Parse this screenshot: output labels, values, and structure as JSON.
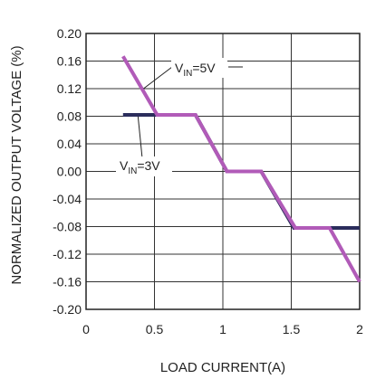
{
  "chart_data": {
    "type": "line",
    "xlabel": "LOAD CURRENT(A)",
    "ylabel": "NORMALIZED OUTPUT VOLTAGE (%)",
    "xlim": [
      0,
      2
    ],
    "ylim": [
      -0.2,
      0.2
    ],
    "x_ticks": [
      "0",
      "0.5",
      "1",
      "1.5",
      "2"
    ],
    "y_ticks": [
      "0.20",
      "0.16",
      "0.12",
      "0.08",
      "0.04",
      "0.00",
      "-0.04",
      "-0.08",
      "-0.12",
      "-0.16",
      "-0.20"
    ],
    "grid": true,
    "colors": {
      "vin_3v": "#2b2d5c",
      "vin_5v": "#b15bb8"
    },
    "series": [
      {
        "key": "vin_3v",
        "x": [
          0.27,
          0.5,
          0.8,
          1.03,
          1.28,
          1.52,
          1.78,
          2.0
        ],
        "y": [
          0.082,
          0.082,
          0.082,
          0.0,
          0.0,
          -0.082,
          -0.082,
          -0.082
        ]
      },
      {
        "key": "vin_5v",
        "x": [
          0.27,
          0.52,
          0.8,
          1.03,
          1.28,
          1.53,
          1.78,
          2.0
        ],
        "y": [
          0.167,
          0.082,
          0.082,
          0.0,
          0.0,
          -0.082,
          -0.082,
          -0.16
        ]
      }
    ],
    "annotations": [
      {
        "series": "vin_5v",
        "text_main": "V",
        "text_sub": "IN",
        "text_tail": "=5V"
      },
      {
        "series": "vin_3v",
        "text_main": "V",
        "text_sub": "IN",
        "text_tail": "=3V"
      }
    ]
  }
}
